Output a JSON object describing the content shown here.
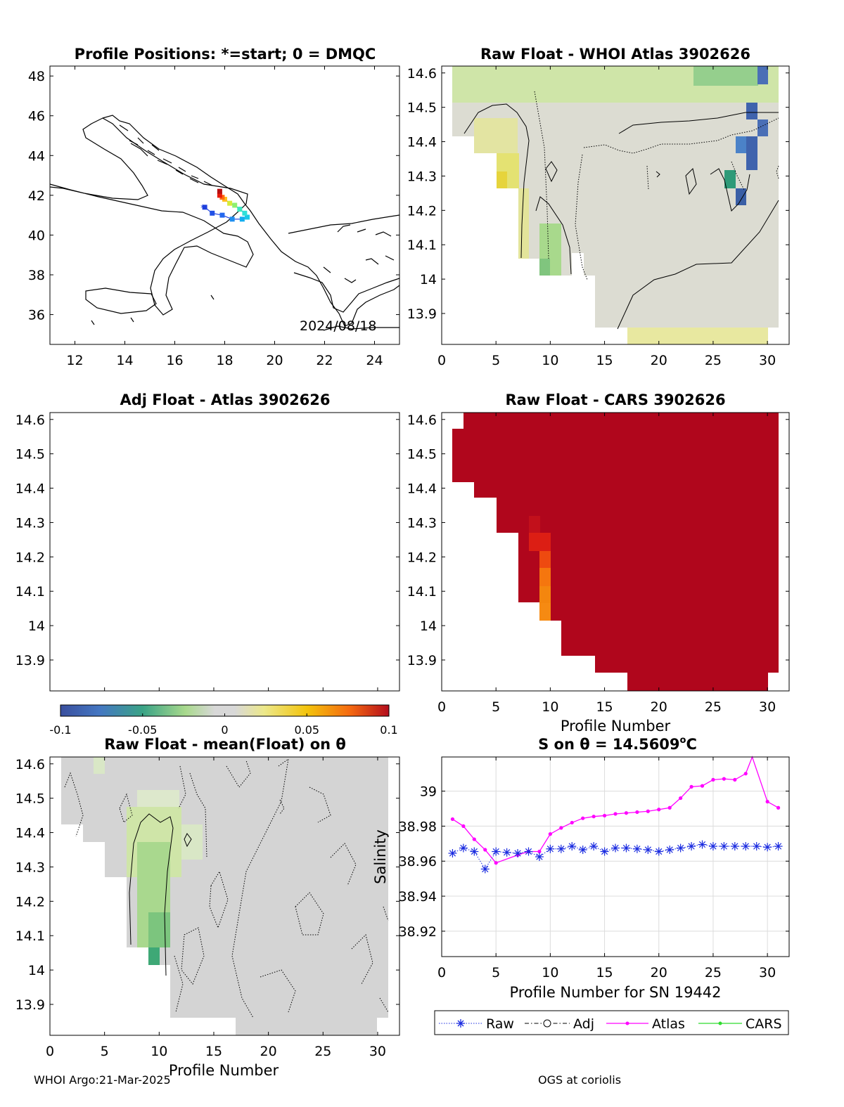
{
  "footer": {
    "left": "WHOI Argo:21-Mar-2025",
    "right": "OGS at coriolis"
  },
  "colorbar": {
    "ticks": [
      "-0.1",
      "-0.05",
      "0",
      "0.05",
      "0.1"
    ],
    "range": [
      -0.1,
      0.1
    ]
  },
  "chart_data": [
    {
      "type": "scatter",
      "panel": "map",
      "title": "Profile Positions: *=start; 0 = DMQC",
      "xticks": [
        "12",
        "14",
        "16",
        "18",
        "20",
        "22",
        "24"
      ],
      "yticks": [
        "36",
        "38",
        "40",
        "42",
        "44",
        "46",
        "48"
      ],
      "xlim": [
        11,
        25
      ],
      "ylim": [
        34.5,
        48.5
      ],
      "annotation": "2024/08/18",
      "track": {
        "lon": [
          17.2,
          17.5,
          17.9,
          18.3,
          18.7,
          18.9,
          18.8,
          18.6,
          18.4,
          18.2,
          18.0,
          17.9,
          17.8,
          17.8
        ],
        "lat": [
          41.4,
          41.1,
          41.0,
          40.8,
          40.8,
          40.9,
          41.1,
          41.3,
          41.5,
          41.6,
          41.8,
          41.9,
          42.0,
          42.2
        ],
        "colors": [
          "#1e3fdc",
          "#2050e6",
          "#2468ee",
          "#1f8ef0",
          "#12aef0",
          "#18c8e8",
          "#2ee0d8",
          "#38e8c0",
          "#8ef070",
          "#d6ec3a",
          "#ffc020",
          "#ff6a10",
          "#e81a0a",
          "#b80e10"
        ]
      }
    },
    {
      "type": "heatmap",
      "panel": "raw-whoi",
      "title": "Raw Float - WHOI Atlas  3902626",
      "xticks": [
        "0",
        "5",
        "10",
        "15",
        "20",
        "25",
        "30"
      ],
      "yticks": [
        "13.9",
        "14",
        "14.1",
        "14.2",
        "14.3",
        "14.4",
        "14.5",
        "14.6"
      ],
      "xlim": [
        0,
        32
      ],
      "ylim": [
        13.81,
        14.62
      ]
    },
    {
      "type": "heatmap",
      "panel": "adj-atlas",
      "title": "Adj Float - Atlas  3902626",
      "xticks": [],
      "yticks": [
        "13.9",
        "14",
        "14.1",
        "14.2",
        "14.3",
        "14.4",
        "14.5",
        "14.6"
      ],
      "ylim": [
        13.81,
        14.62
      ]
    },
    {
      "type": "heatmap",
      "panel": "raw-cars",
      "title": "Raw Float - CARS  3902626",
      "xticks": [
        "0",
        "5",
        "10",
        "15",
        "20",
        "25",
        "30"
      ],
      "yticks": [
        "13.9",
        "14",
        "14.1",
        "14.2",
        "14.3",
        "14.4",
        "14.5",
        "14.6"
      ],
      "xlabel": "Profile Number",
      "xlim": [
        0,
        32
      ],
      "ylim": [
        13.81,
        14.62
      ]
    },
    {
      "type": "heatmap",
      "panel": "raw-mean",
      "title": "Raw Float - mean(Float) on θ",
      "xticks": [
        "0",
        "5",
        "10",
        "15",
        "20",
        "25",
        "30"
      ],
      "yticks": [
        "13.9",
        "14",
        "14.1",
        "14.2",
        "14.3",
        "14.4",
        "14.5",
        "14.6"
      ],
      "xlabel": "Profile Number",
      "xlim": [
        0,
        32
      ],
      "ylim": [
        13.81,
        14.62
      ]
    },
    {
      "type": "line",
      "panel": "salinity",
      "title": "S on θ = 14.5609",
      "title_sup": "o",
      "title_unit": "C",
      "xlabel": "Profile Number for SN 19442",
      "ylabel": "Salinity",
      "xticks": [
        "0",
        "5",
        "10",
        "15",
        "20",
        "25",
        "30"
      ],
      "yticks": [
        "38.92",
        "38.94",
        "38.96",
        "38.98",
        "39"
      ],
      "xlim": [
        0,
        32
      ],
      "ylim": [
        38.9055,
        39.0195
      ],
      "grid": true,
      "legend": [
        "Raw",
        "Adj",
        "Atlas",
        "CARS"
      ],
      "legend_position": "bottom",
      "series": [
        {
          "name": "Raw",
          "x": [
            1,
            2,
            3,
            4,
            5,
            6,
            7,
            8,
            9,
            10,
            11,
            12,
            13,
            14,
            15,
            16,
            17,
            18,
            19,
            20,
            21,
            22,
            23,
            24,
            25,
            26,
            27,
            28,
            29,
            30,
            31
          ],
          "y": [
            38.9645,
            38.9675,
            38.9655,
            38.9555,
            38.9655,
            38.965,
            38.9645,
            38.9655,
            38.9625,
            38.967,
            38.967,
            38.9685,
            38.9665,
            38.9685,
            38.9655,
            38.9675,
            38.9675,
            38.967,
            38.9665,
            38.9655,
            38.9665,
            38.9675,
            38.9685,
            38.9695,
            38.9685,
            38.9685,
            38.9685,
            38.9685,
            38.9685,
            38.968,
            38.9685
          ]
        },
        {
          "name": "Atlas",
          "x": [
            1,
            2,
            3,
            4,
            5,
            7,
            8,
            9,
            10,
            11,
            12,
            13,
            14,
            15,
            16,
            17,
            18,
            19,
            20,
            21,
            22,
            23,
            24,
            25,
            26,
            27,
            28,
            28.6,
            30,
            31
          ],
          "y": [
            38.984,
            38.98,
            38.9725,
            38.9665,
            38.959,
            38.9635,
            38.9655,
            38.9655,
            38.9755,
            38.979,
            38.982,
            38.9845,
            38.9855,
            38.986,
            38.987,
            38.9875,
            38.988,
            38.9885,
            38.9895,
            38.9905,
            38.996,
            39.0025,
            39.003,
            39.0065,
            39.007,
            39.0065,
            39.01,
            39.0195,
            38.994,
            38.9905
          ]
        }
      ]
    }
  ]
}
